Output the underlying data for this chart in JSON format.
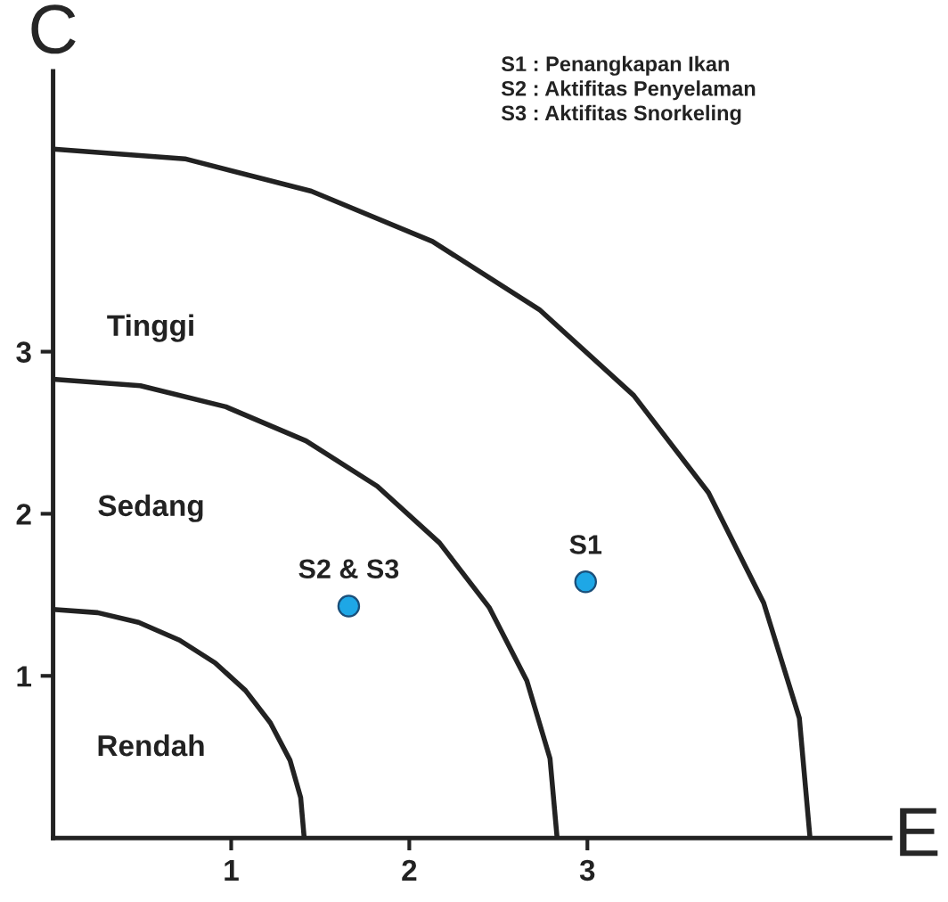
{
  "chart_data": {
    "type": "scatter",
    "xlabel": "E",
    "ylabel": "C",
    "xlim": [
      0,
      4.7
    ],
    "ylim": [
      0,
      4.73
    ],
    "xticks": [
      1,
      2,
      3
    ],
    "yticks": [
      1,
      2,
      3
    ],
    "grid": false,
    "marker": "circle",
    "series": [
      {
        "type": "line",
        "marker": "none",
        "color": "#222222",
        "x": [
          1.41,
          1.39,
          1.33,
          1.22,
          1.08,
          0.91,
          0.71,
          0.48,
          0.25,
          0
        ],
        "values": [
          0,
          0.25,
          0.48,
          0.71,
          0.91,
          1.08,
          1.22,
          1.33,
          1.39,
          1.41
        ]
      },
      {
        "type": "line",
        "marker": "none",
        "color": "#222222",
        "x": [
          2.83,
          2.79,
          2.66,
          2.45,
          2.17,
          1.82,
          1.42,
          0.97,
          0.49,
          0
        ],
        "values": [
          0,
          0.49,
          0.97,
          1.42,
          1.82,
          2.17,
          2.45,
          2.66,
          2.79,
          2.83
        ]
      },
      {
        "type": "line",
        "marker": "none",
        "color": "#222222",
        "x": [
          4.25,
          4.19,
          3.99,
          3.68,
          3.26,
          2.73,
          2.13,
          1.45,
          0.74,
          0
        ],
        "values": [
          0,
          0.74,
          1.45,
          2.13,
          2.73,
          3.26,
          3.68,
          3.99,
          4.19,
          4.25
        ]
      },
      {
        "name": "S1",
        "color": "#1ea7e6",
        "x": [
          2.99
        ],
        "values": [
          1.58
        ]
      },
      {
        "name": "S2 & S3",
        "color": "#1ea7e6",
        "x": [
          1.66
        ],
        "values": [
          1.43
        ]
      }
    ],
    "annotations": [
      "Tinggi",
      "Sedang",
      "Rendah",
      "S1 : Penangkapan Ikan",
      "S2 : Aktifitas Penyelaman",
      "S3 : Aktifitas Snorkeling"
    ]
  }
}
